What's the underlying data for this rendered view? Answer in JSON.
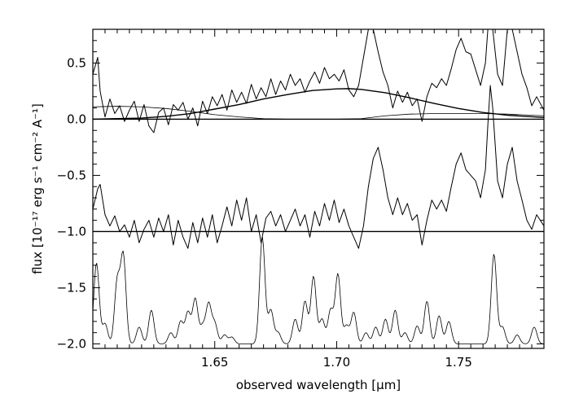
{
  "chart_data": {
    "type": "line",
    "xlabel": "observed wavelength [μm]",
    "ylabel": "flux [10⁻¹⁷ erg s⁻¹ cm⁻² A⁻¹]",
    "xlim": [
      1.6,
      1.785
    ],
    "ylim": [
      -2.04,
      0.8
    ],
    "xticks": [
      1.65,
      1.7,
      1.75
    ],
    "xtick_labels": [
      "1.65",
      "1.70",
      "1.75"
    ],
    "yticks": [
      0.5,
      0.0,
      -0.5,
      -1.0,
      -1.5,
      -2.0
    ],
    "ytick_labels": [
      "0.5",
      "0.0",
      "−0.5",
      "−1.0",
      "−1.5",
      "−2.0"
    ],
    "grid": false,
    "reference_lines": [
      0.0,
      -1.0
    ],
    "series": [
      {
        "role": "observed spectrum",
        "points": [
          [
            1.6,
            0.4
          ],
          [
            1.602,
            0.55
          ],
          [
            1.603,
            0.25
          ],
          [
            1.605,
            0.02
          ],
          [
            1.607,
            0.18
          ],
          [
            1.609,
            0.05
          ],
          [
            1.611,
            0.12
          ],
          [
            1.613,
            -0.02
          ],
          [
            1.615,
            0.08
          ],
          [
            1.617,
            0.16
          ],
          [
            1.619,
            -0.02
          ],
          [
            1.621,
            0.13
          ],
          [
            1.623,
            -0.06
          ],
          [
            1.625,
            -0.12
          ],
          [
            1.627,
            0.06
          ],
          [
            1.629,
            0.1
          ],
          [
            1.631,
            -0.05
          ],
          [
            1.633,
            0.13
          ],
          [
            1.635,
            0.08
          ],
          [
            1.637,
            0.15
          ],
          [
            1.639,
            0.0
          ],
          [
            1.641,
            0.1
          ],
          [
            1.643,
            -0.06
          ],
          [
            1.645,
            0.16
          ],
          [
            1.647,
            0.05
          ],
          [
            1.649,
            0.2
          ],
          [
            1.651,
            0.12
          ],
          [
            1.653,
            0.22
          ],
          [
            1.655,
            0.08
          ],
          [
            1.657,
            0.26
          ],
          [
            1.659,
            0.15
          ],
          [
            1.661,
            0.24
          ],
          [
            1.663,
            0.14
          ],
          [
            1.665,
            0.31
          ],
          [
            1.667,
            0.18
          ],
          [
            1.669,
            0.28
          ],
          [
            1.671,
            0.2
          ],
          [
            1.673,
            0.36
          ],
          [
            1.675,
            0.22
          ],
          [
            1.677,
            0.34
          ],
          [
            1.679,
            0.26
          ],
          [
            1.681,
            0.4
          ],
          [
            1.683,
            0.3
          ],
          [
            1.685,
            0.36
          ],
          [
            1.687,
            0.24
          ],
          [
            1.689,
            0.34
          ],
          [
            1.691,
            0.42
          ],
          [
            1.693,
            0.32
          ],
          [
            1.695,
            0.46
          ],
          [
            1.697,
            0.36
          ],
          [
            1.699,
            0.4
          ],
          [
            1.701,
            0.34
          ],
          [
            1.703,
            0.44
          ],
          [
            1.705,
            0.26
          ],
          [
            1.707,
            0.2
          ],
          [
            1.709,
            0.3
          ],
          [
            1.711,
            0.55
          ],
          [
            1.713,
            0.8
          ],
          [
            1.715,
            0.8
          ],
          [
            1.717,
            0.6
          ],
          [
            1.719,
            0.42
          ],
          [
            1.721,
            0.3
          ],
          [
            1.723,
            0.1
          ],
          [
            1.725,
            0.25
          ],
          [
            1.727,
            0.15
          ],
          [
            1.729,
            0.24
          ],
          [
            1.731,
            0.12
          ],
          [
            1.733,
            0.18
          ],
          [
            1.735,
            -0.02
          ],
          [
            1.737,
            0.2
          ],
          [
            1.739,
            0.32
          ],
          [
            1.741,
            0.28
          ],
          [
            1.743,
            0.36
          ],
          [
            1.745,
            0.3
          ],
          [
            1.747,
            0.45
          ],
          [
            1.749,
            0.62
          ],
          [
            1.751,
            0.72
          ],
          [
            1.753,
            0.6
          ],
          [
            1.755,
            0.58
          ],
          [
            1.757,
            0.44
          ],
          [
            1.759,
            0.3
          ],
          [
            1.761,
            0.5
          ],
          [
            1.762,
            0.8
          ],
          [
            1.764,
            0.8
          ],
          [
            1.766,
            0.4
          ],
          [
            1.768,
            0.3
          ],
          [
            1.77,
            0.8
          ],
          [
            1.772,
            0.8
          ],
          [
            1.774,
            0.6
          ],
          [
            1.776,
            0.4
          ],
          [
            1.778,
            0.28
          ],
          [
            1.78,
            0.12
          ],
          [
            1.782,
            0.2
          ],
          [
            1.785,
            0.08
          ]
        ]
      },
      {
        "role": "broad component fit",
        "points": [
          [
            1.6,
            0.0
          ],
          [
            1.62,
            0.01
          ],
          [
            1.63,
            0.025
          ],
          [
            1.64,
            0.05
          ],
          [
            1.65,
            0.09
          ],
          [
            1.66,
            0.13
          ],
          [
            1.67,
            0.18
          ],
          [
            1.68,
            0.22
          ],
          [
            1.69,
            0.255
          ],
          [
            1.7,
            0.27
          ],
          [
            1.705,
            0.272
          ],
          [
            1.71,
            0.265
          ],
          [
            1.72,
            0.235
          ],
          [
            1.73,
            0.19
          ],
          [
            1.74,
            0.14
          ],
          [
            1.75,
            0.095
          ],
          [
            1.76,
            0.06
          ],
          [
            1.77,
            0.035
          ],
          [
            1.785,
            0.015
          ]
        ]
      },
      {
        "role": "narrow component fit",
        "points": [
          [
            1.6,
            0.11
          ],
          [
            1.61,
            0.115
          ],
          [
            1.62,
            0.11
          ],
          [
            1.63,
            0.095
          ],
          [
            1.64,
            0.07
          ],
          [
            1.65,
            0.04
          ],
          [
            1.66,
            0.02
          ],
          [
            1.67,
            0.005
          ],
          [
            1.68,
            0.0
          ],
          [
            1.7,
            0.0
          ],
          [
            1.71,
            0.005
          ],
          [
            1.72,
            0.03
          ],
          [
            1.73,
            0.045
          ],
          [
            1.74,
            0.05
          ],
          [
            1.75,
            0.05
          ],
          [
            1.76,
            0.05
          ],
          [
            1.77,
            0.045
          ],
          [
            1.785,
            0.03
          ]
        ]
      },
      {
        "role": "residuals",
        "points": [
          [
            1.6,
            -0.8
          ],
          [
            1.602,
            -0.62
          ],
          [
            1.603,
            -0.58
          ],
          [
            1.605,
            -0.85
          ],
          [
            1.607,
            -0.95
          ],
          [
            1.609,
            -0.86
          ],
          [
            1.611,
            -1.0
          ],
          [
            1.613,
            -0.94
          ],
          [
            1.615,
            -1.05
          ],
          [
            1.617,
            -0.9
          ],
          [
            1.619,
            -1.1
          ],
          [
            1.621,
            -0.98
          ],
          [
            1.623,
            -0.9
          ],
          [
            1.625,
            -1.05
          ],
          [
            1.627,
            -0.88
          ],
          [
            1.629,
            -1.0
          ],
          [
            1.631,
            -0.85
          ],
          [
            1.633,
            -1.12
          ],
          [
            1.635,
            -0.9
          ],
          [
            1.637,
            -1.05
          ],
          [
            1.639,
            -1.15
          ],
          [
            1.641,
            -0.92
          ],
          [
            1.643,
            -1.1
          ],
          [
            1.645,
            -0.88
          ],
          [
            1.647,
            -1.05
          ],
          [
            1.649,
            -0.85
          ],
          [
            1.651,
            -1.1
          ],
          [
            1.653,
            -0.95
          ],
          [
            1.655,
            -0.78
          ],
          [
            1.657,
            -0.95
          ],
          [
            1.659,
            -0.72
          ],
          [
            1.661,
            -0.9
          ],
          [
            1.663,
            -0.7
          ],
          [
            1.665,
            -1.0
          ],
          [
            1.667,
            -0.85
          ],
          [
            1.669,
            -1.1
          ],
          [
            1.671,
            -0.88
          ],
          [
            1.673,
            -0.82
          ],
          [
            1.675,
            -0.95
          ],
          [
            1.677,
            -0.85
          ],
          [
            1.679,
            -1.0
          ],
          [
            1.681,
            -0.9
          ],
          [
            1.683,
            -0.8
          ],
          [
            1.685,
            -0.95
          ],
          [
            1.687,
            -0.85
          ],
          [
            1.689,
            -1.05
          ],
          [
            1.691,
            -0.82
          ],
          [
            1.693,
            -0.95
          ],
          [
            1.695,
            -0.75
          ],
          [
            1.697,
            -0.9
          ],
          [
            1.699,
            -0.72
          ],
          [
            1.701,
            -0.92
          ],
          [
            1.703,
            -0.8
          ],
          [
            1.705,
            -0.95
          ],
          [
            1.707,
            -1.05
          ],
          [
            1.709,
            -1.15
          ],
          [
            1.711,
            -0.95
          ],
          [
            1.713,
            -0.6
          ],
          [
            1.715,
            -0.35
          ],
          [
            1.717,
            -0.25
          ],
          [
            1.719,
            -0.45
          ],
          [
            1.721,
            -0.7
          ],
          [
            1.723,
            -0.85
          ],
          [
            1.725,
            -0.7
          ],
          [
            1.727,
            -0.85
          ],
          [
            1.729,
            -0.75
          ],
          [
            1.731,
            -0.9
          ],
          [
            1.733,
            -0.85
          ],
          [
            1.735,
            -1.12
          ],
          [
            1.737,
            -0.9
          ],
          [
            1.739,
            -0.72
          ],
          [
            1.741,
            -0.8
          ],
          [
            1.743,
            -0.72
          ],
          [
            1.745,
            -0.82
          ],
          [
            1.747,
            -0.6
          ],
          [
            1.749,
            -0.4
          ],
          [
            1.751,
            -0.3
          ],
          [
            1.753,
            -0.45
          ],
          [
            1.755,
            -0.5
          ],
          [
            1.757,
            -0.55
          ],
          [
            1.759,
            -0.7
          ],
          [
            1.761,
            -0.45
          ],
          [
            1.762,
            -0.05
          ],
          [
            1.763,
            0.3
          ],
          [
            1.764,
            0.1
          ],
          [
            1.766,
            -0.55
          ],
          [
            1.768,
            -0.7
          ],
          [
            1.77,
            -0.4
          ],
          [
            1.772,
            -0.25
          ],
          [
            1.774,
            -0.55
          ],
          [
            1.776,
            -0.72
          ],
          [
            1.778,
            -0.9
          ],
          [
            1.78,
            -0.98
          ],
          [
            1.782,
            -0.85
          ],
          [
            1.785,
            -0.95
          ]
        ]
      },
      {
        "role": "sky lines",
        "baseline": -2.0,
        "peaks": [
          [
            1.6015,
            0.72
          ],
          [
            1.605,
            0.18
          ],
          [
            1.6125,
            0.78
          ],
          [
            1.61,
            0.55
          ],
          [
            1.619,
            0.15
          ],
          [
            1.624,
            0.3
          ],
          [
            1.632,
            0.1
          ],
          [
            1.636,
            0.2
          ],
          [
            1.639,
            0.28
          ],
          [
            1.642,
            0.4
          ],
          [
            1.645,
            0.15
          ],
          [
            1.6475,
            0.35
          ],
          [
            1.65,
            0.18
          ],
          [
            1.654,
            0.08
          ],
          [
            1.657,
            0.06
          ],
          [
            1.6695,
            0.95
          ],
          [
            1.673,
            0.3
          ],
          [
            1.676,
            0.1
          ],
          [
            1.683,
            0.22
          ],
          [
            1.687,
            0.38
          ],
          [
            1.6905,
            0.6
          ],
          [
            1.694,
            0.22
          ],
          [
            1.6975,
            0.3
          ],
          [
            1.7005,
            0.62
          ],
          [
            1.704,
            0.16
          ],
          [
            1.707,
            0.28
          ],
          [
            1.712,
            0.1
          ],
          [
            1.716,
            0.15
          ],
          [
            1.72,
            0.22
          ],
          [
            1.724,
            0.3
          ],
          [
            1.728,
            0.1
          ],
          [
            1.733,
            0.16
          ],
          [
            1.737,
            0.38
          ],
          [
            1.742,
            0.25
          ],
          [
            1.746,
            0.2
          ],
          [
            1.7645,
            0.8
          ],
          [
            1.768,
            0.15
          ],
          [
            1.774,
            0.08
          ],
          [
            1.781,
            0.15
          ]
        ],
        "line_width": 0.0011
      }
    ]
  }
}
